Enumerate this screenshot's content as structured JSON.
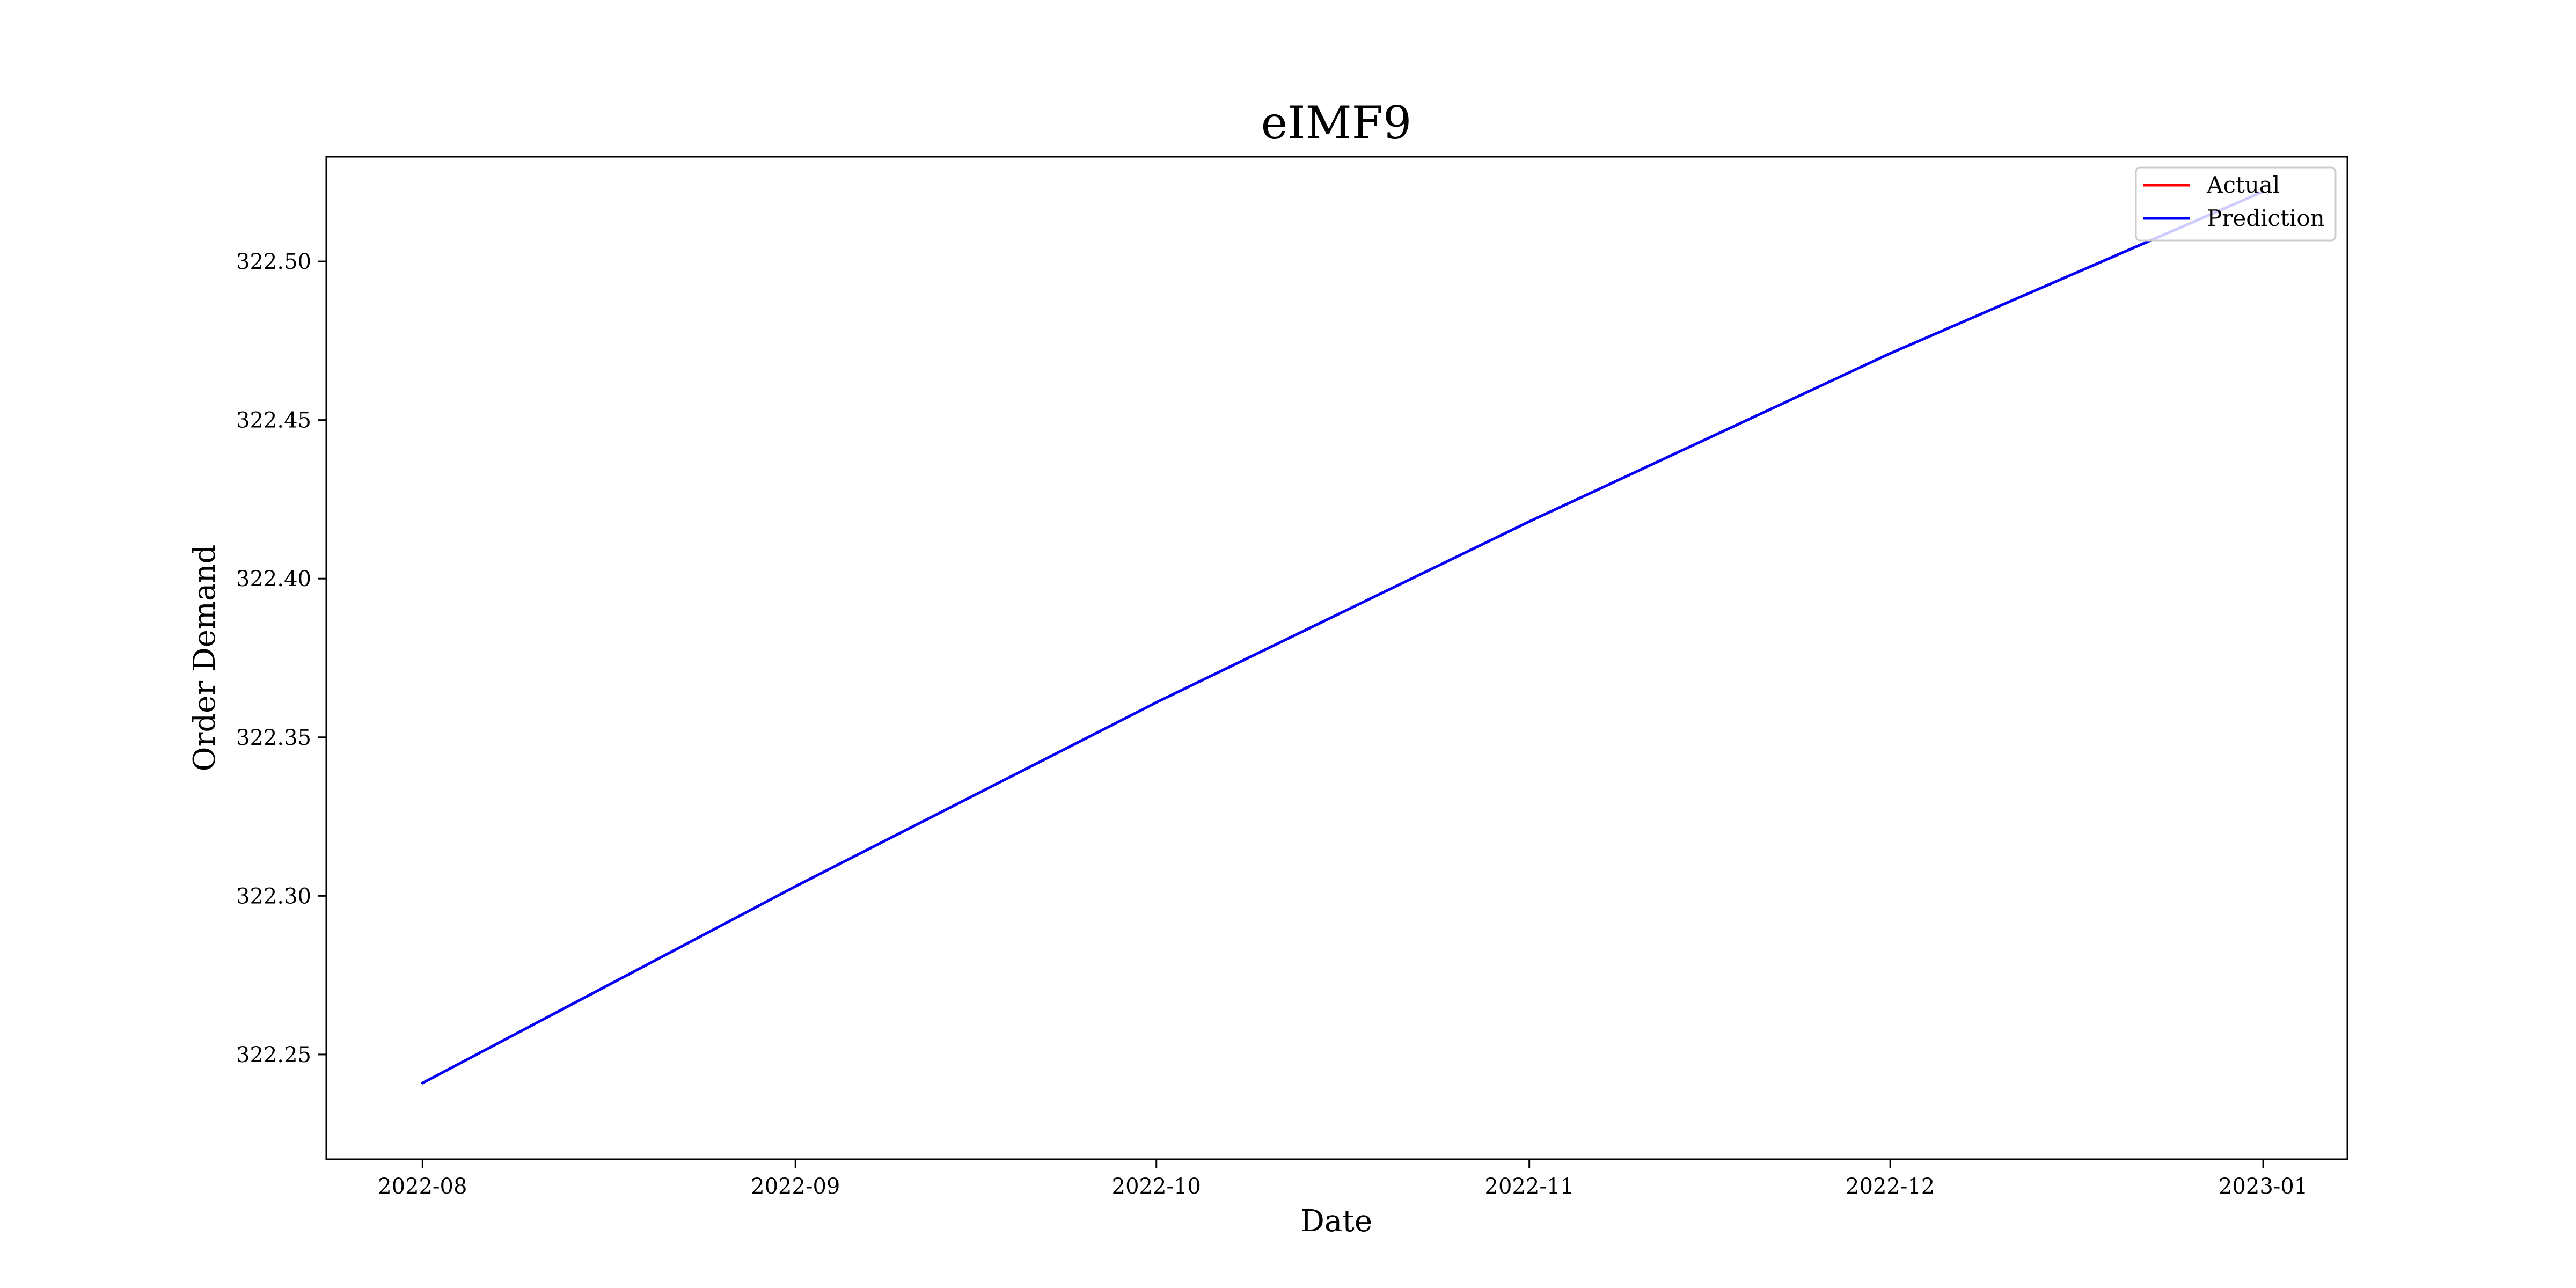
{
  "chart_data": {
    "type": "line",
    "title": "eIMF9",
    "xlabel": "Date",
    "ylabel": "Order Demand",
    "x_axis": {
      "type": "date",
      "range": [
        "2022-07-24",
        "2023-01-08"
      ],
      "ticks": [
        "2022-08-01",
        "2022-09-01",
        "2022-10-01",
        "2022-11-01",
        "2022-12-01",
        "2023-01-01"
      ],
      "tick_labels": [
        "2022-08",
        "2022-09",
        "2022-10",
        "2022-11",
        "2022-12",
        "2023-01"
      ]
    },
    "y_axis": {
      "range": [
        322.217,
        322.533
      ],
      "ticks": [
        322.25,
        322.3,
        322.35,
        322.4,
        322.45,
        322.5
      ],
      "tick_labels": [
        "322.25",
        "322.30",
        "322.35",
        "322.40",
        "322.45",
        "322.50"
      ]
    },
    "series": [
      {
        "name": "Actual",
        "color": "#ff0000",
        "points": [
          {
            "x": "2022-08-01",
            "y": 322.241
          },
          {
            "x": "2022-09-01",
            "y": 322.303
          },
          {
            "x": "2022-10-01",
            "y": 322.361
          },
          {
            "x": "2022-11-01",
            "y": 322.418
          },
          {
            "x": "2022-12-01",
            "y": 322.471
          },
          {
            "x": "2023-01-01",
            "y": 322.522
          }
        ]
      },
      {
        "name": "Prediction",
        "color": "#0000ff",
        "points": [
          {
            "x": "2022-08-01",
            "y": 322.241
          },
          {
            "x": "2022-09-01",
            "y": 322.303
          },
          {
            "x": "2022-10-01",
            "y": 322.361
          },
          {
            "x": "2022-11-01",
            "y": 322.418
          },
          {
            "x": "2022-12-01",
            "y": 322.471
          },
          {
            "x": "2023-01-01",
            "y": 322.522
          }
        ]
      }
    ],
    "grid": false,
    "legend_position": "top-right"
  }
}
